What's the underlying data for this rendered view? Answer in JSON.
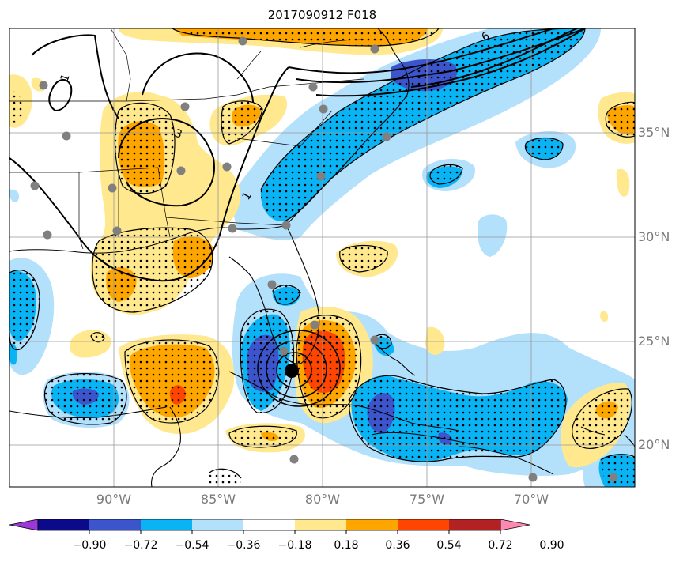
{
  "title": "2017090912 F018",
  "lat_labels": [
    "35°N",
    "30°N",
    "25°N",
    "20°N"
  ],
  "lon_labels": [
    "90°W",
    "85°W",
    "80°W",
    "75°W",
    "70°W"
  ],
  "colorbar": {
    "tick_labels": [
      "−0.90",
      "−0.72",
      "−0.54",
      "−0.36",
      "−0.18",
      "0.18",
      "0.36",
      "0.54",
      "0.72",
      "0.90"
    ],
    "colors": [
      "#9a38d8",
      "#0a0a8a",
      "#3d55cc",
      "#0ab4f4",
      "#b3e0fb",
      "#ffffff",
      "#ffe88e",
      "#ffa500",
      "#ff4500",
      "#b22222",
      "#ff88b0"
    ]
  },
  "colors": {
    "light_blue": "#b3e0fb",
    "blue": "#0ab4f4",
    "medium_blue": "#3d55cc",
    "yellow": "#ffe88e",
    "orange": "#ffa500",
    "red_orange": "#ff4500",
    "station_marker": "#808080",
    "storm_center": "#000000"
  }
}
